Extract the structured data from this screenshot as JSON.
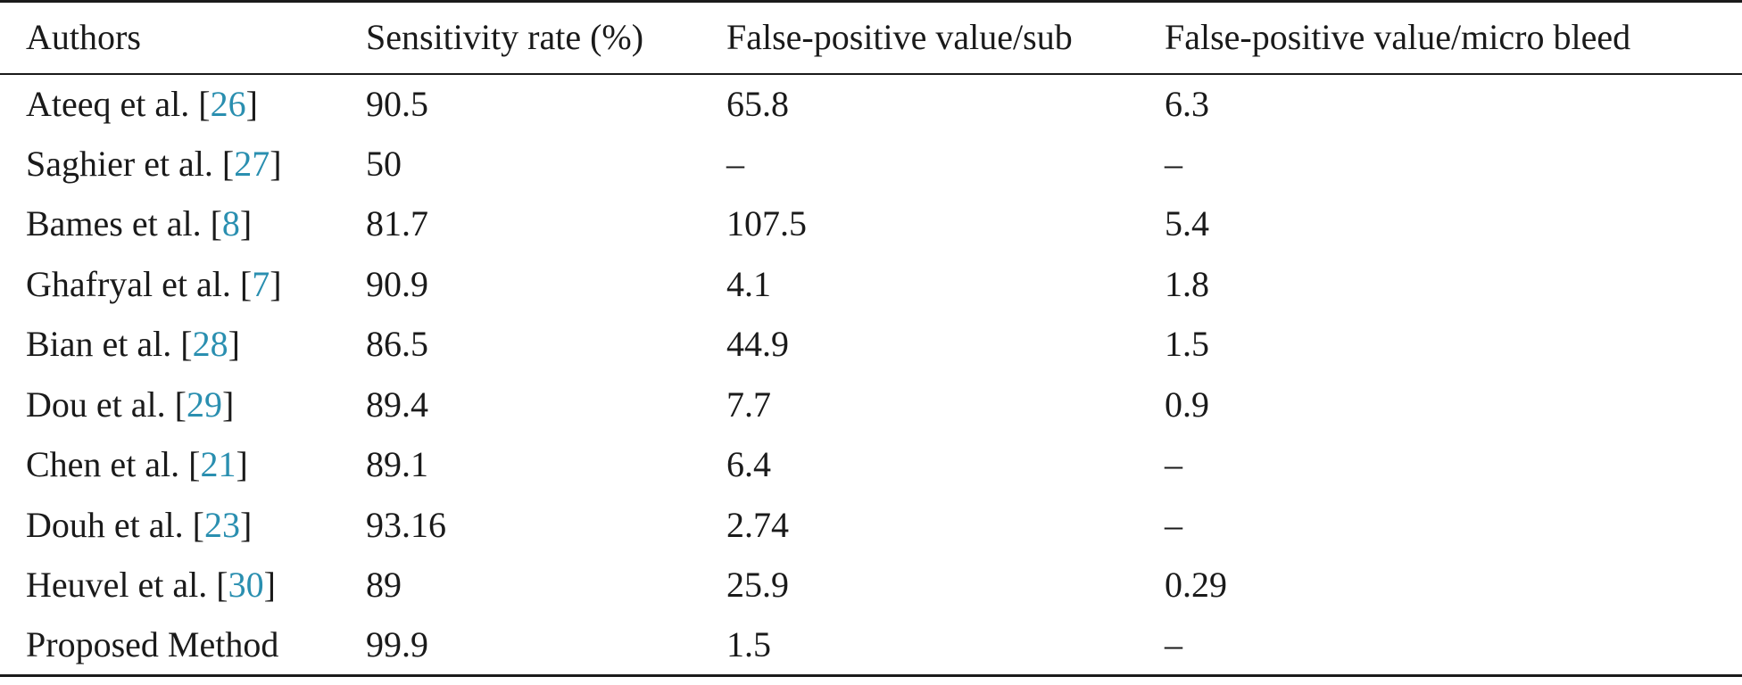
{
  "table": {
    "headers": [
      "Authors",
      "Sensitivity rate (%)",
      "False-positive value/sub",
      "False-positive value/micro bleed"
    ],
    "rows": [
      {
        "author": "Ateeq et al. [",
        "ref": "26",
        "close": "]",
        "sensitivity": "90.5",
        "fp_sub": "65.8",
        "fp_microbleed": "6.3"
      },
      {
        "author": "Saghier et al. [",
        "ref": "27",
        "close": "]",
        "sensitivity": "50",
        "fp_sub": "–",
        "fp_microbleed": "–"
      },
      {
        "author": "Bames et al. [",
        "ref": "8",
        "close": "]",
        "sensitivity": "81.7",
        "fp_sub": "107.5",
        "fp_microbleed": "5.4"
      },
      {
        "author": "Ghafryal et al. [",
        "ref": "7",
        "close": "]",
        "sensitivity": "90.9",
        "fp_sub": "4.1",
        "fp_microbleed": "1.8"
      },
      {
        "author": "Bian et al. [",
        "ref": "28",
        "close": "]",
        "sensitivity": "86.5",
        "fp_sub": "44.9",
        "fp_microbleed": "1.5"
      },
      {
        "author": "Dou et al. [",
        "ref": "29",
        "close": "]",
        "sensitivity": "89.4",
        "fp_sub": "7.7",
        "fp_microbleed": "0.9"
      },
      {
        "author": "Chen et al. [",
        "ref": "21",
        "close": "]",
        "sensitivity": "89.1",
        "fp_sub": "6.4",
        "fp_microbleed": "–"
      },
      {
        "author": "Douh et al. [",
        "ref": "23",
        "close": "]",
        "sensitivity": "93.16",
        "fp_sub": "2.74",
        "fp_microbleed": "–"
      },
      {
        "author": "Heuvel et al. [",
        "ref": "30",
        "close": "]",
        "sensitivity": "89",
        "fp_sub": "25.9",
        "fp_microbleed": "0.29"
      },
      {
        "author": "Proposed Method",
        "ref": "",
        "close": "",
        "sensitivity": "99.9",
        "fp_sub": "1.5",
        "fp_microbleed": "–"
      }
    ],
    "colors": {
      "text": "#1a1a1a",
      "reference_link": "#2a8fb0",
      "rule": "#1a1a1a"
    }
  }
}
